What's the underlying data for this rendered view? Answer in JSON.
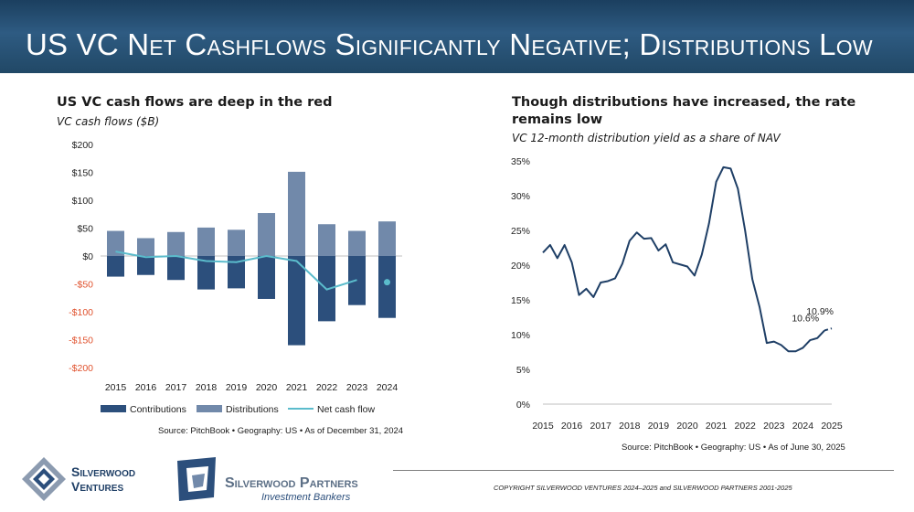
{
  "header": {
    "title": "US VC  Net Cashflows Significantly Negative; Distributions Low"
  },
  "left_panel": {
    "title": "US VC cash flows are deep in the red",
    "subtitle": "VC cash flows ($B)",
    "source": "Source: PitchBook  •  Geography: US  •  As of December 31, 2024"
  },
  "right_panel": {
    "title_line1": "Though distributions have increased, the rate",
    "title_line2": "remains low",
    "subtitle": "VC 12-month distribution yield as a share of NAV",
    "source": "Source: PitchBook  •  Geography: US  •  As of June 30, 2025"
  },
  "chart_data": [
    {
      "type": "bar",
      "title": "US VC cash flows are deep in the red",
      "ylabel": "VC cash flows ($B)",
      "categories": [
        "2015",
        "2016",
        "2017",
        "2018",
        "2019",
        "2020",
        "2021",
        "2022",
        "2023",
        "2024"
      ],
      "ylim": [
        -200,
        200
      ],
      "yticks": [
        200,
        150,
        100,
        50,
        0,
        -50,
        -100,
        -150,
        -200
      ],
      "ytick_labels": [
        "$200",
        "$150",
        "$100",
        "$50",
        "$0",
        "-$50",
        "-$100",
        "-$150",
        "-$200"
      ],
      "series": [
        {
          "name": "Contributions",
          "type": "bar",
          "values": [
            -37,
            -34,
            -43,
            -60,
            -58,
            -77,
            -160,
            -117,
            -88,
            -111
          ]
        },
        {
          "name": "Distributions",
          "type": "bar",
          "values": [
            45,
            32,
            43,
            51,
            47,
            77,
            151,
            57,
            45,
            62
          ]
        },
        {
          "name": "Net cash flow",
          "type": "line",
          "values": [
            8,
            -2,
            0,
            -9,
            -11,
            0,
            -9,
            -60,
            -43,
            -47
          ]
        }
      ],
      "colors": {
        "Contributions": "#2c4f7c",
        "Distributions": "#7189aa",
        "Net cash flow": "#5bbccc",
        "negative_tick": "#e0522e"
      },
      "legend": "bottom"
    },
    {
      "type": "line",
      "title": "Though distributions have increased, the rate remains low",
      "ylabel": "VC 12-month distribution yield as a share of NAV",
      "xlim": [
        2015,
        2025
      ],
      "xticks": [
        "2015",
        "2016",
        "2017",
        "2018",
        "2019",
        "2020",
        "2021",
        "2022",
        "2023",
        "2024",
        "2025"
      ],
      "ylim": [
        0,
        35
      ],
      "yticks": [
        35,
        30,
        25,
        20,
        15,
        10,
        5,
        0
      ],
      "ytick_labels": [
        "35%",
        "30%",
        "25%",
        "20%",
        "15%",
        "10%",
        "5%",
        "0%"
      ],
      "series": [
        {
          "name": "Distribution yield",
          "x": [
            2015,
            2015.25,
            2015.5,
            2015.75,
            2016,
            2016.25,
            2016.5,
            2016.75,
            2017,
            2017.25,
            2017.5,
            2017.75,
            2018,
            2018.25,
            2018.5,
            2018.75,
            2019,
            2019.25,
            2019.5,
            2019.75,
            2020,
            2020.25,
            2020.5,
            2020.75,
            2021,
            2021.25,
            2021.5,
            2021.75,
            2022,
            2022.25,
            2022.5,
            2022.75,
            2023,
            2023.25,
            2023.5,
            2023.75,
            2024,
            2024.25,
            2024.5,
            2024.75,
            2025
          ],
          "values": [
            21.8,
            22.9,
            21.0,
            22.9,
            20.4,
            15.7,
            16.6,
            15.4,
            17.5,
            17.7,
            18.1,
            20.2,
            23.5,
            24.7,
            23.8,
            23.9,
            22.1,
            23.0,
            20.4,
            20.1,
            19.8,
            18.5,
            21.5,
            26.0,
            32.0,
            34.1,
            33.9,
            31.0,
            25.0,
            18.0,
            14.0,
            8.8,
            9.0,
            8.5,
            7.6,
            7.6,
            8.1,
            9.2,
            9.5,
            10.6,
            10.9
          ]
        }
      ],
      "annotations": [
        "10.6%",
        "10.9%"
      ],
      "color": "#1f3f66"
    }
  ],
  "legend_labels": {
    "contributions": "Contributions",
    "distributions": "Distributions",
    "net": "Net cash flow"
  },
  "footer": {
    "copyright": "COPYRIGHT SILVERWOOD VENTURES 2024–2025 and SILVERWOOD PARTNERS 2001-2025",
    "logo1_line1": "Silverwood",
    "logo1_line2": "Ventures",
    "logo2_line1": "Silverwood Partners",
    "logo2_line2": "Investment Bankers"
  }
}
